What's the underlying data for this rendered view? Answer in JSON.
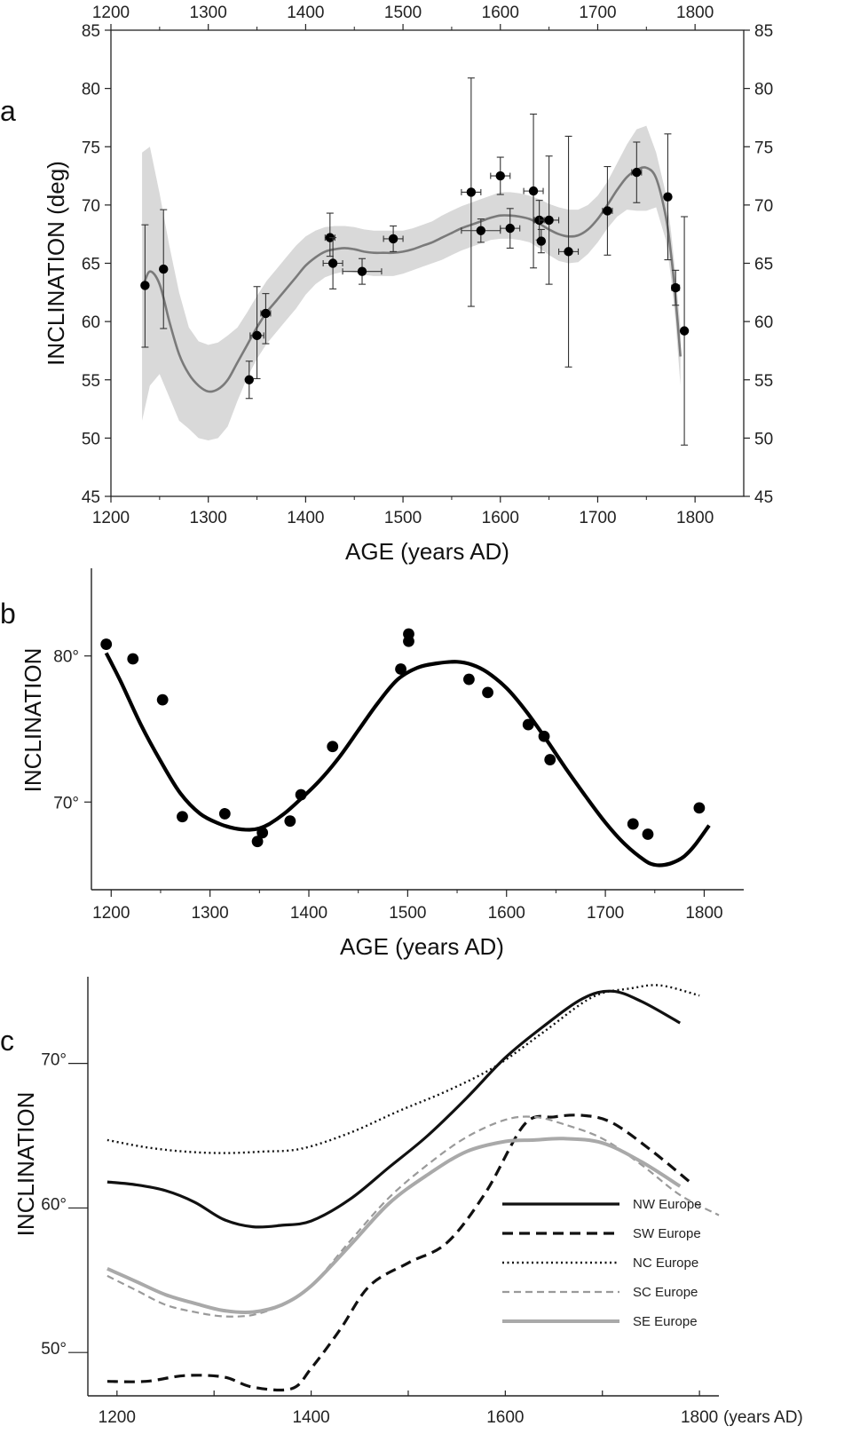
{
  "chart_data": [
    {
      "type": "line",
      "panel_letter": "a",
      "ylabel": "INCLINATION (deg)",
      "xlabel": "AGE (years AD)",
      "xlim": [
        1200,
        1850
      ],
      "ylim": [
        45,
        85
      ],
      "xticks": [
        1200,
        1300,
        1400,
        1500,
        1600,
        1700,
        1800
      ],
      "yticks": [
        45,
        50,
        55,
        60,
        65,
        70,
        75,
        80,
        85
      ],
      "top_axis": true,
      "right_axis": true,
      "grid": false,
      "band_color": "#d9d9d9",
      "curve_color": "#7a7a7a",
      "curve": {
        "x": [
          1233,
          1240,
          1250,
          1260,
          1270,
          1280,
          1290,
          1300,
          1310,
          1320,
          1330,
          1340,
          1350,
          1360,
          1370,
          1380,
          1390,
          1400,
          1410,
          1420,
          1430,
          1440,
          1450,
          1460,
          1470,
          1480,
          1490,
          1500,
          1510,
          1520,
          1530,
          1540,
          1550,
          1560,
          1570,
          1580,
          1590,
          1600,
          1610,
          1620,
          1630,
          1640,
          1650,
          1660,
          1670,
          1680,
          1690,
          1700,
          1710,
          1720,
          1730,
          1740,
          1750,
          1760,
          1770,
          1775,
          1780,
          1785
        ],
        "y": [
          63,
          64.3,
          63.2,
          60,
          57.2,
          55.5,
          54.5,
          54,
          54.2,
          55,
          56.5,
          58,
          59.5,
          60.8,
          61.8,
          62.8,
          63.8,
          64.8,
          65.5,
          66,
          66.2,
          66.3,
          66.2,
          66,
          65.9,
          65.9,
          65.9,
          66,
          66.2,
          66.5,
          66.8,
          67.2,
          67.6,
          68,
          68.3,
          68.6,
          68.9,
          69.1,
          69.1,
          69,
          68.8,
          68.4,
          67.9,
          67.5,
          67.3,
          67.4,
          67.9,
          68.8,
          70,
          71.3,
          72.4,
          73,
          73.2,
          72.3,
          69,
          66,
          62,
          57
        ]
      },
      "band": {
        "x": [
          1232,
          1240,
          1250,
          1260,
          1270,
          1280,
          1290,
          1300,
          1310,
          1320,
          1330,
          1340,
          1350,
          1360,
          1370,
          1380,
          1390,
          1400,
          1410,
          1420,
          1430,
          1440,
          1450,
          1460,
          1470,
          1480,
          1490,
          1500,
          1510,
          1520,
          1530,
          1540,
          1550,
          1560,
          1570,
          1580,
          1590,
          1600,
          1610,
          1620,
          1630,
          1640,
          1650,
          1660,
          1670,
          1680,
          1690,
          1700,
          1710,
          1720,
          1730,
          1740,
          1750,
          1760,
          1770,
          1775,
          1780,
          1785
        ],
        "upper": [
          74.5,
          75,
          71,
          66.5,
          62.5,
          59.5,
          58.3,
          58,
          58.2,
          58.8,
          59.5,
          60.8,
          62.2,
          63.5,
          64.5,
          65.5,
          66.5,
          67.3,
          67.8,
          68.1,
          68.2,
          68.2,
          68.1,
          67.9,
          67.8,
          67.8,
          67.8,
          67.8,
          68,
          68.3,
          68.6,
          69.1,
          69.5,
          69.9,
          70.2,
          70.5,
          70.8,
          71.1,
          71.1,
          71,
          70.8,
          70.5,
          70.1,
          69.8,
          69.6,
          69.6,
          70,
          70.8,
          72,
          73.6,
          75.2,
          76.5,
          76.8,
          74.5,
          71,
          68,
          64,
          59.5
        ],
        "lower": [
          51.5,
          54.5,
          55.5,
          53.5,
          51.5,
          50.8,
          50,
          49.8,
          50,
          51,
          53.2,
          55.2,
          56.8,
          58.1,
          59.1,
          60.1,
          61.1,
          62.3,
          63.2,
          63.8,
          64.1,
          64.3,
          64.2,
          64,
          63.9,
          63.9,
          63.9,
          64.1,
          64.4,
          64.7,
          65,
          65.3,
          65.7,
          66.1,
          66.4,
          66.7,
          67,
          67.1,
          67.1,
          67,
          66.8,
          66.3,
          65.7,
          65.2,
          65,
          65.1,
          65.8,
          66.8,
          68,
          69,
          69.6,
          69.5,
          69.5,
          69.8,
          67,
          64,
          60,
          54.5
        ]
      },
      "points": [
        {
          "x": 1235,
          "y": 63.1,
          "yerr": [
            5.3,
            5.2
          ],
          "xerr": [
            0,
            0
          ]
        },
        {
          "x": 1254,
          "y": 64.5,
          "yerr": [
            5.1,
            5.1
          ],
          "xerr": [
            0,
            0
          ]
        },
        {
          "x": 1342,
          "y": 55.0,
          "yerr": [
            1.6,
            1.6
          ],
          "xerr": [
            0,
            0
          ]
        },
        {
          "x": 1350,
          "y": 58.8,
          "yerr": [
            3.7,
            4.2
          ],
          "xerr": [
            7,
            7
          ]
        },
        {
          "x": 1359,
          "y": 60.7,
          "yerr": [
            2.6,
            1.7
          ],
          "xerr": [
            5,
            5
          ]
        },
        {
          "x": 1425,
          "y": 67.2,
          "yerr": [
            1.6,
            2.1
          ],
          "xerr": [
            5,
            5
          ]
        },
        {
          "x": 1428,
          "y": 65.0,
          "yerr": [
            2.2,
            2.2
          ],
          "xerr": [
            10,
            10
          ]
        },
        {
          "x": 1458,
          "y": 64.3,
          "yerr": [
            1.1,
            1.1
          ],
          "xerr": [
            20,
            20
          ]
        },
        {
          "x": 1490,
          "y": 67.1,
          "yerr": [
            1.1,
            1.1
          ],
          "xerr": [
            10,
            10
          ]
        },
        {
          "x": 1570,
          "y": 71.1,
          "yerr": [
            9.8,
            9.8
          ],
          "xerr": [
            10,
            10
          ]
        },
        {
          "x": 1580,
          "y": 67.8,
          "yerr": [
            1.0,
            1.0
          ],
          "xerr": [
            20,
            20
          ]
        },
        {
          "x": 1600,
          "y": 72.5,
          "yerr": [
            1.6,
            1.6
          ],
          "xerr": [
            10,
            10
          ]
        },
        {
          "x": 1610,
          "y": 68.0,
          "yerr": [
            1.7,
            1.7
          ],
          "xerr": [
            10,
            10
          ]
        },
        {
          "x": 1634,
          "y": 71.2,
          "yerr": [
            6.6,
            6.6
          ],
          "xerr": [
            10,
            10
          ]
        },
        {
          "x": 1640,
          "y": 68.7,
          "yerr": [
            1.7,
            1.7
          ],
          "xerr": [
            5,
            5
          ]
        },
        {
          "x": 1642,
          "y": 66.9,
          "yerr": [
            1.0,
            1.0
          ],
          "xerr": [
            3,
            3
          ]
        },
        {
          "x": 1650,
          "y": 68.7,
          "yerr": [
            5.5,
            5.5
          ],
          "xerr": [
            10,
            10
          ]
        },
        {
          "x": 1670,
          "y": 66.0,
          "yerr": [
            9.9,
            9.9
          ],
          "xerr": [
            10,
            10
          ]
        },
        {
          "x": 1710,
          "y": 69.5,
          "yerr": [
            3.8,
            3.8
          ],
          "xerr": [
            5,
            5
          ]
        },
        {
          "x": 1740,
          "y": 72.8,
          "yerr": [
            2.6,
            2.6
          ],
          "xerr": [
            5,
            5
          ]
        },
        {
          "x": 1772,
          "y": 70.7,
          "yerr": [
            5.4,
            5.4
          ],
          "xerr": [
            3,
            3
          ]
        },
        {
          "x": 1780,
          "y": 62.9,
          "yerr": [
            1.5,
            1.5
          ],
          "xerr": [
            4,
            4
          ]
        },
        {
          "x": 1789,
          "y": 59.2,
          "yerr": [
            9.8,
            9.8
          ],
          "xerr": [
            0,
            0
          ]
        }
      ]
    },
    {
      "type": "scatter",
      "panel_letter": "b",
      "ylabel": "INCLINATION",
      "xlabel": "AGE (years AD)",
      "xlim": [
        1180,
        1840
      ],
      "ylim": [
        64,
        86
      ],
      "xticks": [
        1200,
        1300,
        1400,
        1500,
        1600,
        1700,
        1800
      ],
      "yticks": [
        70,
        80
      ],
      "ytick_labels": [
        "70°",
        "80°"
      ],
      "grid": false,
      "curve": {
        "x": [
          1195,
          1210,
          1230,
          1250,
          1270,
          1290,
          1310,
          1325,
          1340,
          1350,
          1360,
          1375,
          1390,
          1410,
          1430,
          1450,
          1470,
          1490,
          1510,
          1530,
          1550,
          1565,
          1580,
          1600,
          1620,
          1640,
          1660,
          1680,
          1700,
          1720,
          1740,
          1750,
          1760,
          1770,
          1780,
          1790,
          1805
        ],
        "y": [
          80.2,
          78.2,
          75.3,
          72.8,
          70.6,
          69.2,
          68.5,
          68.2,
          68.1,
          68.2,
          68.5,
          69.2,
          70.1,
          71.4,
          73.0,
          74.9,
          76.8,
          78.4,
          79.2,
          79.5,
          79.6,
          79.4,
          78.9,
          77.8,
          76.2,
          74.3,
          72.3,
          70.4,
          68.6,
          67.1,
          66.0,
          65.7,
          65.7,
          65.9,
          66.3,
          67.0,
          68.4
        ]
      },
      "points": [
        {
          "x": 1195,
          "y": 80.8
        },
        {
          "x": 1222,
          "y": 79.8
        },
        {
          "x": 1252,
          "y": 77.0
        },
        {
          "x": 1272,
          "y": 69.0
        },
        {
          "x": 1315,
          "y": 69.2
        },
        {
          "x": 1348,
          "y": 67.3
        },
        {
          "x": 1353,
          "y": 67.9
        },
        {
          "x": 1381,
          "y": 68.7
        },
        {
          "x": 1392,
          "y": 70.5
        },
        {
          "x": 1424,
          "y": 73.8
        },
        {
          "x": 1493,
          "y": 79.1
        },
        {
          "x": 1501,
          "y": 81.5
        },
        {
          "x": 1501,
          "y": 81.0
        },
        {
          "x": 1562,
          "y": 78.4
        },
        {
          "x": 1581,
          "y": 77.5
        },
        {
          "x": 1622,
          "y": 75.3
        },
        {
          "x": 1638,
          "y": 74.5
        },
        {
          "x": 1644,
          "y": 72.9
        },
        {
          "x": 1728,
          "y": 68.5
        },
        {
          "x": 1743,
          "y": 67.8
        },
        {
          "x": 1795,
          "y": 69.6
        }
      ]
    },
    {
      "type": "line",
      "panel_letter": "c",
      "ylabel": "INCLINATION",
      "xlabel": "(years AD)",
      "xlim": [
        1170,
        1820
      ],
      "ylim": [
        47,
        76
      ],
      "xticks": [
        1200,
        1300,
        1400,
        1500,
        1600,
        1700,
        1800
      ],
      "xtick_labels": [
        "1200",
        "",
        "1400",
        "",
        "1600",
        "",
        "1800"
      ],
      "yticks": [
        50,
        60,
        70
      ],
      "ytick_labels": [
        "50°",
        "60°",
        "70°"
      ],
      "grid": false,
      "legend_position": "bottom-right",
      "series": [
        {
          "name": "NW Europe",
          "style": "solid",
          "color": "#111111",
          "width": 3.2,
          "x": [
            1190,
            1220,
            1250,
            1280,
            1310,
            1340,
            1370,
            1400,
            1440,
            1480,
            1520,
            1560,
            1600,
            1640,
            1680,
            1710,
            1740,
            1780
          ],
          "y": [
            61.8,
            61.6,
            61.2,
            60.4,
            59.2,
            58.7,
            58.8,
            59.1,
            60.6,
            62.8,
            65.0,
            67.6,
            70.4,
            72.6,
            74.5,
            75.0,
            74.3,
            72.8
          ]
        },
        {
          "name": "SW Europe",
          "style": "dashed",
          "color": "#111111",
          "width": 3.2,
          "x": [
            1190,
            1230,
            1270,
            1310,
            1340,
            1380,
            1400,
            1430,
            1460,
            1500,
            1540,
            1580,
            1620,
            1650,
            1680,
            1710,
            1750,
            1790
          ],
          "y": [
            48.0,
            48.0,
            48.4,
            48.3,
            47.6,
            47.5,
            48.9,
            51.6,
            54.6,
            56.2,
            57.6,
            61.1,
            65.8,
            66.3,
            66.4,
            65.9,
            64.0,
            61.8
          ]
        },
        {
          "name": "NC Europe",
          "style": "dotted",
          "color": "#111111",
          "width": 2.4,
          "x": [
            1190,
            1230,
            1270,
            1310,
            1350,
            1390,
            1440,
            1490,
            1540,
            1590,
            1640,
            1690,
            1730,
            1760,
            1800
          ],
          "y": [
            64.7,
            64.2,
            63.9,
            63.8,
            63.9,
            64.1,
            65.2,
            66.7,
            68.1,
            69.8,
            72.2,
            74.6,
            75.2,
            75.4,
            74.7
          ]
        },
        {
          "name": "SC Europe",
          "style": "dashed-fine",
          "color": "#9a9a9a",
          "width": 2.2,
          "x": [
            1190,
            1220,
            1250,
            1280,
            1310,
            1340,
            1370,
            1400,
            1440,
            1480,
            1520,
            1560,
            1600,
            1630,
            1660,
            1700,
            1740,
            1780,
            1820
          ],
          "y": [
            55.3,
            54.3,
            53.3,
            52.8,
            52.5,
            52.6,
            53.3,
            54.6,
            57.7,
            60.7,
            63.0,
            64.9,
            66.1,
            66.3,
            65.8,
            64.8,
            63.0,
            60.9,
            59.5
          ]
        },
        {
          "name": "SE Europe",
          "style": "solid",
          "color": "#a9a9a9",
          "width": 4,
          "x": [
            1190,
            1220,
            1250,
            1280,
            1310,
            1340,
            1370,
            1400,
            1440,
            1480,
            1520,
            1560,
            1600,
            1630,
            1660,
            1700,
            1740,
            1780
          ],
          "y": [
            55.8,
            54.9,
            54.0,
            53.4,
            52.9,
            52.8,
            53.3,
            54.6,
            57.4,
            60.3,
            62.3,
            63.9,
            64.6,
            64.7,
            64.8,
            64.5,
            63.2,
            61.5
          ]
        }
      ]
    }
  ]
}
